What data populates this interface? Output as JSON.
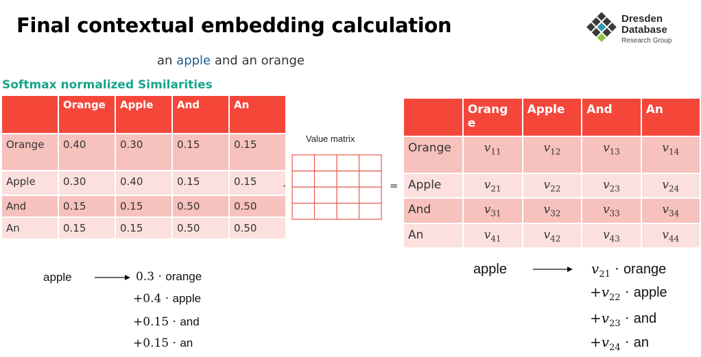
{
  "slide": {
    "title": "Final contextual embedding calculation",
    "logo": {
      "line1": "Dresden",
      "line2": "Database",
      "line3": "Research Group"
    },
    "sentence": {
      "pre": "an ",
      "highlight": "apple",
      "post": " and an orange"
    },
    "subtitle": "Softmax normalized Similarities"
  },
  "similarity_table": {
    "headers": [
      "",
      "Orange",
      "Apple",
      "And",
      "An"
    ],
    "rows": [
      [
        "Orange",
        "0.40",
        "0.30",
        "0.15",
        "0.15"
      ],
      [
        "Apple",
        "0.30",
        "0.40",
        "0.15",
        "0.15"
      ],
      [
        "And",
        "0.15",
        "0.15",
        "0.50",
        "0.50"
      ],
      [
        "An",
        "0.15",
        "0.15",
        "0.50",
        "0.50"
      ]
    ]
  },
  "value_matrix": {
    "label": "Value matrix",
    "rows": 4,
    "cols": 4,
    "color": "#e8554a"
  },
  "operators": {
    "dot": "·",
    "equals": "="
  },
  "result_table": {
    "headers": [
      "",
      "Orang\ne",
      "Apple",
      "And",
      "An"
    ],
    "row_labels": [
      "Orange",
      "Apple",
      "And",
      "An"
    ],
    "cell_symbol": "v",
    "subscripts": [
      [
        "11",
        "12",
        "13",
        "14"
      ],
      [
        "21",
        "22",
        "23",
        "24"
      ],
      [
        "31",
        "32",
        "33",
        "34"
      ],
      [
        "41",
        "42",
        "43",
        "44"
      ]
    ]
  },
  "left_formula": {
    "word": "apple",
    "terms": [
      {
        "prefix": "",
        "coef": "0.3",
        "op": " · ",
        "word": "orange"
      },
      {
        "prefix": "+",
        "coef": "0.4",
        "op": " · ",
        "word": "apple"
      },
      {
        "prefix": "+",
        "coef": "0.15",
        "op": " · ",
        "word": "and"
      },
      {
        "prefix": "+",
        "coef": "0.15",
        "op": " · ",
        "word": "an"
      }
    ]
  },
  "right_formula": {
    "word": "apple",
    "terms": [
      {
        "prefix": "",
        "sym": "v",
        "sub": "21",
        "op": " · ",
        "word": "orange"
      },
      {
        "prefix": "+",
        "sym": "v",
        "sub": "22",
        "op": " · ",
        "word": "apple"
      },
      {
        "prefix": "+",
        "sym": "v",
        "sub": "23",
        "op": " · ",
        "word": "and"
      },
      {
        "prefix": "+",
        "sym": "v",
        "sub": "24",
        "op": " · ",
        "word": "an"
      }
    ]
  },
  "colors": {
    "header_red": "#f4473a",
    "row_dark": "#f7c1bd",
    "row_light": "#fbe0de",
    "subtitle_green": "#17a589",
    "highlight_blue": "#1f5f8b"
  }
}
